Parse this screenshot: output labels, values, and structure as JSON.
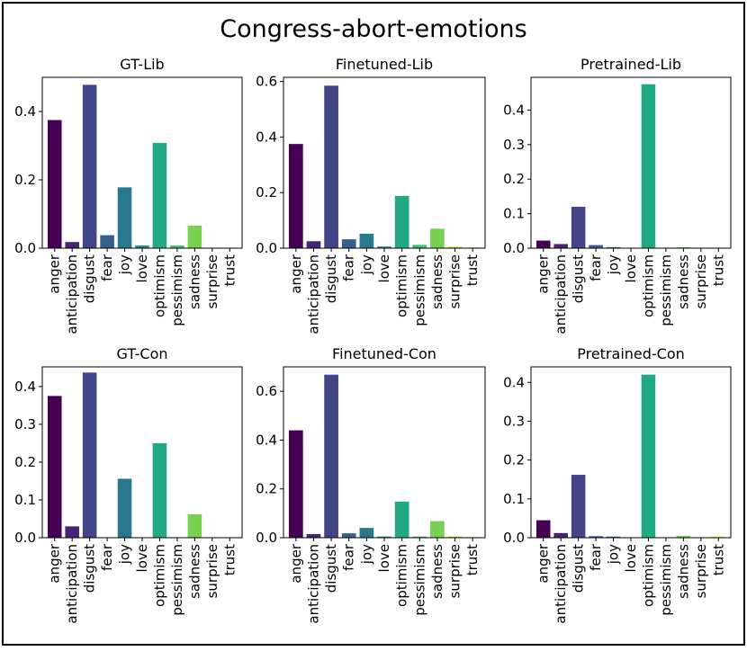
{
  "figure_title": "Congress-abort-emotions",
  "chart_data": [
    {
      "id": "gt-lib",
      "type": "bar",
      "title": "GT-Lib",
      "categories": [
        "anger",
        "anticipation",
        "disgust",
        "fear",
        "joy",
        "love",
        "optimism",
        "pessimism",
        "sadness",
        "surprise",
        "trust"
      ],
      "values": [
        0.375,
        0.018,
        0.478,
        0.038,
        0.178,
        0.008,
        0.308,
        0.008,
        0.066,
        0.0,
        0.0
      ],
      "ylim": [
        0,
        0.5
      ],
      "yticks": [
        0.0,
        0.2,
        0.4
      ],
      "ytick_labels": [
        "0.0",
        "0.2",
        "0.4"
      ]
    },
    {
      "id": "finetuned-lib",
      "type": "bar",
      "title": "Finetuned-Lib",
      "categories": [
        "anger",
        "anticipation",
        "disgust",
        "fear",
        "joy",
        "love",
        "optimism",
        "pessimism",
        "sadness",
        "surprise",
        "trust"
      ],
      "values": [
        0.375,
        0.025,
        0.585,
        0.032,
        0.052,
        0.006,
        0.188,
        0.012,
        0.07,
        0.005,
        0.003
      ],
      "ylim": [
        0,
        0.615
      ],
      "yticks": [
        0.0,
        0.2,
        0.4,
        0.6
      ],
      "ytick_labels": [
        "0.0",
        "0.2",
        "0.4",
        "0.6"
      ]
    },
    {
      "id": "pretrained-lib",
      "type": "bar",
      "title": "Pretrained-Lib",
      "categories": [
        "anger",
        "anticipation",
        "disgust",
        "fear",
        "joy",
        "love",
        "optimism",
        "pessimism",
        "sadness",
        "surprise",
        "trust"
      ],
      "values": [
        0.022,
        0.012,
        0.12,
        0.009,
        0.003,
        0.0,
        0.475,
        0.0,
        0.003,
        0.001,
        0.001
      ],
      "ylim": [
        0,
        0.495
      ],
      "yticks": [
        0.0,
        0.1,
        0.2,
        0.3,
        0.4
      ],
      "ytick_labels": [
        "0.0",
        "0.1",
        "0.2",
        "0.3",
        "0.4"
      ]
    },
    {
      "id": "gt-con",
      "type": "bar",
      "title": "GT-Con",
      "categories": [
        "anger",
        "anticipation",
        "disgust",
        "fear",
        "joy",
        "love",
        "optimism",
        "pessimism",
        "sadness",
        "surprise",
        "trust"
      ],
      "values": [
        0.375,
        0.03,
        0.437,
        0.0,
        0.156,
        0.0,
        0.25,
        0.0,
        0.062,
        0.0,
        0.0
      ],
      "ylim": [
        0,
        0.452
      ],
      "yticks": [
        0.0,
        0.1,
        0.2,
        0.3,
        0.4
      ],
      "ytick_labels": [
        "0.0",
        "0.1",
        "0.2",
        "0.3",
        "0.4"
      ]
    },
    {
      "id": "finetuned-con",
      "type": "bar",
      "title": "Finetuned-Con",
      "categories": [
        "anger",
        "anticipation",
        "disgust",
        "fear",
        "joy",
        "love",
        "optimism",
        "pessimism",
        "sadness",
        "surprise",
        "trust"
      ],
      "values": [
        0.44,
        0.015,
        0.668,
        0.018,
        0.04,
        0.005,
        0.148,
        0.005,
        0.068,
        0.005,
        0.003
      ],
      "ylim": [
        0,
        0.7
      ],
      "yticks": [
        0.0,
        0.2,
        0.4,
        0.6
      ],
      "ytick_labels": [
        "0.0",
        "0.2",
        "0.4",
        "0.6"
      ]
    },
    {
      "id": "pretrained-con",
      "type": "bar",
      "title": "Pretrained-Con",
      "categories": [
        "anger",
        "anticipation",
        "disgust",
        "fear",
        "joy",
        "love",
        "optimism",
        "pessimism",
        "sadness",
        "surprise",
        "trust"
      ],
      "values": [
        0.045,
        0.012,
        0.162,
        0.004,
        0.003,
        0.0,
        0.42,
        0.0,
        0.005,
        0.001,
        0.003
      ],
      "ylim": [
        0,
        0.44
      ],
      "yticks": [
        0.0,
        0.1,
        0.2,
        0.3,
        0.4
      ],
      "ytick_labels": [
        "0.0",
        "0.1",
        "0.2",
        "0.3",
        "0.4"
      ]
    }
  ],
  "colors": [
    "#440154",
    "#482475",
    "#414487",
    "#355f8d",
    "#2a788e",
    "#21918c",
    "#22a884",
    "#44bf70",
    "#7ad151",
    "#bddf26",
    "#fde725"
  ]
}
